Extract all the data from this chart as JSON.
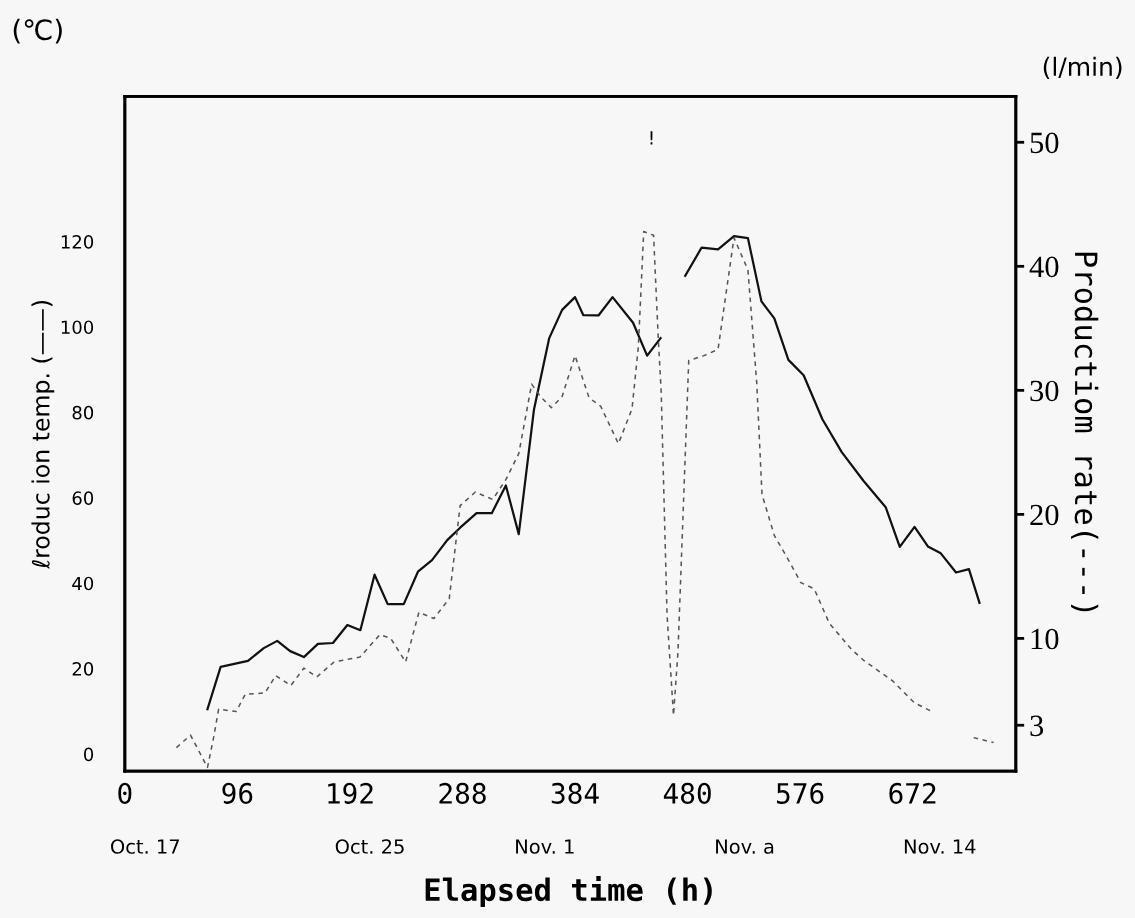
{
  "chart_data": {
    "type": "line",
    "xlabel": "Elapsed time (h)",
    "ylabel": "ℓroduc ion temp. (——)",
    "y2label": "Productiom rate(---)",
    "xlim": [
      0,
      760
    ],
    "xticks": [
      0,
      96,
      192,
      288,
      384,
      480,
      576,
      672
    ],
    "ylim": [
      -4,
      154
    ],
    "yticks": [
      0,
      20,
      40,
      60,
      80,
      100,
      120
    ],
    "y2lim": [
      -0.7,
      53.7
    ],
    "y2ticks": [
      3,
      10,
      20,
      30,
      40,
      50
    ],
    "grid": false,
    "marker": "none",
    "series": [
      {
        "color": "#111111",
        "line_style": "solid",
        "x": [
          70.5,
          81.7,
          105,
          118.5,
          130,
          141,
          152.7,
          164.7,
          177.5,
          189.8,
          200.9,
          213,
          224.2,
          237.9,
          250,
          262,
          275,
          286,
          300,
          313,
          325,
          336,
          349,
          362,
          373,
          384,
          391,
          404,
          416,
          433.5,
          445.5,
          457,
          467,
          478,
          492,
          506,
          519.6,
          531.5,
          543,
          554,
          566,
          579,
          595,
          611.5,
          630,
          649,
          661,
          673.6,
          685,
          696,
          709,
          720,
          729
        ],
        "values": [
          10.5,
          20.4,
          21.8,
          24.8,
          26.5,
          24.1,
          22.7,
          25.8,
          26,
          30.2,
          29,
          42,
          35.1,
          35.1,
          42.7,
          45.4,
          50.1,
          53,
          56.4,
          56.4,
          62.9,
          51.5,
          80.7,
          97.4,
          104,
          107,
          102.8,
          102.7,
          107,
          101,
          93.3,
          97.4,
          null,
          112,
          118.6,
          118.2,
          121.3,
          120.8,
          106,
          102,
          92.3,
          88.7,
          78.4,
          70.7,
          64,
          57.8,
          48.5,
          53.2,
          48.6,
          47,
          42.5,
          43.3,
          35.4
        ]
      },
      {
        "color": "#555555",
        "line_style": "dashed",
        "axis": "y2",
        "x": [
          44,
          56,
          70.5,
          75.7,
          80,
          95,
          102.7,
          119.5,
          128.7,
          141.6,
          152.7,
          163.8,
          178.5,
          200.6,
          217.5,
          226.8,
          239.5,
          250.8,
          263.6,
          276.7,
          286,
          299,
          313.8,
          325,
          336,
          347,
          354.5,
          363.8,
          373,
          384,
          396,
          406,
          421,
          432.6,
          438,
          442.6,
          451,
          455,
          457.5,
          462.5,
          468,
          471.8,
          481,
          494,
          506,
          519.6,
          531.5,
          539,
          543.5,
          554,
          565,
          576.6,
          588,
          601,
          620,
          630.6,
          654.6,
          673.6,
          688.6,
          706,
          724,
          741
        ],
        "values": [
          1.2,
          2.2,
          -0.4,
          2.0,
          4.3,
          4.1,
          5.5,
          5.6,
          7.0,
          6.2,
          7.6,
          6.9,
          8.1,
          8.5,
          10.3,
          10.0,
          8.1,
          12.1,
          11.6,
          13.2,
          20.7,
          21.8,
          21.2,
          22.8,
          24.9,
          30.5,
          29.5,
          28.6,
          29.5,
          32.8,
          29.4,
          28.7,
          25.7,
          28.5,
          33.5,
          42.8,
          42.5,
          34.2,
          29.9,
          11.9,
          3.8,
          8.9,
          32.4,
          32.8,
          33.3,
          42.3,
          39.7,
          30.6,
          21.6,
          18.3,
          16.5,
          14.5,
          14.0,
          11.2,
          9.1,
          8.2,
          6.6,
          4.8,
          4.1,
          null,
          2.0,
          1.6
        ]
      }
    ],
    "annotations": [
      "(℃)",
      "(l/min)",
      "!",
      "Oct. 17",
      "Oct. 25",
      "Nov. 1",
      "Nov. a",
      "Nov. 14"
    ]
  }
}
